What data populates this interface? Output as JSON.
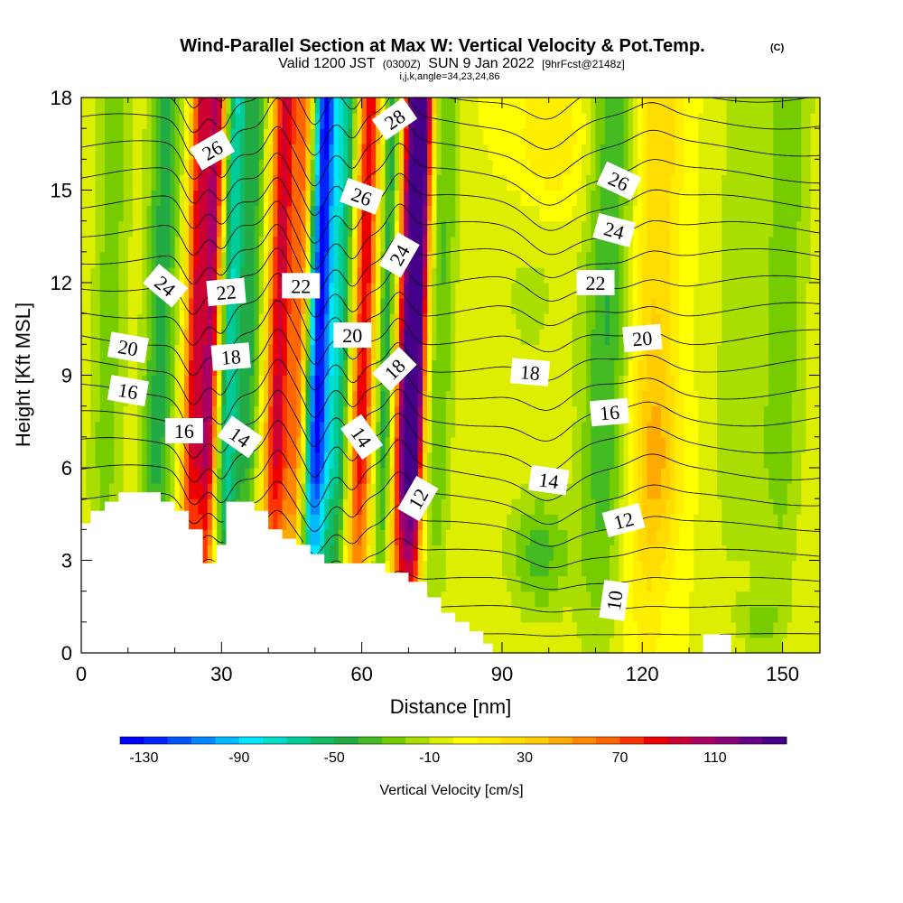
{
  "chart_data": {
    "type": "heatmap",
    "title": "Wind-Parallel Section at Max W: Vertical Velocity & Pot.Temp.",
    "title_mark": "(C)",
    "subtitle_main": "Valid 1200 JST",
    "subtitle_utc": "(0300Z)",
    "subtitle_date": "SUN 9 Jan 2022",
    "subtitle_fcst": "[9hrFcst@2148z]",
    "subtitle_params": "i,j,k,angle=34,23,24,86",
    "xlabel": "Distance [nm]",
    "ylabel": "Height [Kft MSL]",
    "xlim": [
      0,
      158
    ],
    "ylim": [
      0,
      18
    ],
    "x_ticks": [
      "0",
      "30",
      "60",
      "90",
      "120",
      "150"
    ],
    "x_tick_values": [
      0,
      30,
      60,
      90,
      120,
      150
    ],
    "y_ticks": [
      "0",
      "3",
      "6",
      "9",
      "12",
      "15",
      "18"
    ],
    "y_tick_values": [
      0,
      3,
      6,
      9,
      12,
      15,
      18
    ],
    "colorbar": {
      "label": "Vertical Velocity [cm/s]",
      "tick_labels": [
        "-130",
        "-90",
        "-50",
        "-10",
        "30",
        "70",
        "110"
      ],
      "tick_values": [
        -130,
        -90,
        -50,
        -10,
        30,
        70,
        110
      ],
      "min": -140,
      "max": 140,
      "colors": [
        "#0000ff",
        "#0022ff",
        "#0055ff",
        "#0088ff",
        "#00bbff",
        "#00e5ff",
        "#00ddcc",
        "#00cc99",
        "#11bb66",
        "#22aa44",
        "#44bb22",
        "#77cc00",
        "#aadd00",
        "#ddee00",
        "#ffff00",
        "#ffee00",
        "#ffdd00",
        "#ffcc00",
        "#ffaa00",
        "#ff8800",
        "#ff6600",
        "#ff3300",
        "#ee0000",
        "#cc0033",
        "#aa0066",
        "#880077",
        "#660088",
        "#440088"
      ]
    },
    "terrain_kft": [
      [
        0,
        4.2
      ],
      [
        2,
        4.2
      ],
      [
        2,
        4.6
      ],
      [
        5,
        4.6
      ],
      [
        5,
        4.9
      ],
      [
        8,
        4.9
      ],
      [
        8,
        5.2
      ],
      [
        17,
        5.2
      ],
      [
        17,
        4.9
      ],
      [
        20,
        4.9
      ],
      [
        20,
        4.6
      ],
      [
        23,
        4.6
      ],
      [
        23,
        4.0
      ],
      [
        26,
        4.0
      ],
      [
        26,
        2.9
      ],
      [
        29,
        2.9
      ],
      [
        29,
        3.5
      ],
      [
        31,
        3.5
      ],
      [
        31,
        4.9
      ],
      [
        37,
        4.9
      ],
      [
        37,
        4.6
      ],
      [
        40,
        4.6
      ],
      [
        40,
        4.0
      ],
      [
        43,
        4.0
      ],
      [
        43,
        3.7
      ],
      [
        46,
        3.7
      ],
      [
        46,
        3.5
      ],
      [
        49,
        3.5
      ],
      [
        49,
        3.2
      ],
      [
        52,
        3.2
      ],
      [
        52,
        2.9
      ],
      [
        65,
        2.9
      ],
      [
        65,
        2.6
      ],
      [
        70,
        2.6
      ],
      [
        70,
        2.3
      ],
      [
        74,
        2.3
      ],
      [
        74,
        1.8
      ],
      [
        77,
        1.8
      ],
      [
        77,
        1.3
      ],
      [
        80,
        1.3
      ],
      [
        80,
        1.0
      ],
      [
        83,
        1.0
      ],
      [
        83,
        0.7
      ],
      [
        86,
        0.7
      ],
      [
        86,
        0.3
      ],
      [
        88,
        0.3
      ],
      [
        88,
        0.0
      ],
      [
        133,
        0.0
      ],
      [
        133,
        0.6
      ],
      [
        139,
        0.6
      ],
      [
        139,
        0.0
      ],
      [
        158,
        0.0
      ]
    ],
    "w_features": [
      {
        "x": 24.0,
        "width": 2.3,
        "w": 90
      },
      {
        "x": 27.5,
        "width": 2.0,
        "w": 100
      },
      {
        "x": 31.5,
        "width": 2.6,
        "w": -70
      },
      {
        "x": 36.0,
        "width": 2.4,
        "w": -40
      },
      {
        "x": 42.0,
        "width": 2.8,
        "w": 95
      },
      {
        "x": 46.5,
        "width": 2.0,
        "w": 60
      },
      {
        "x": 50.5,
        "width": 2.6,
        "w": -130
      },
      {
        "x": 55.0,
        "width": 2.6,
        "w": -60
      },
      {
        "x": 60.0,
        "width": 2.5,
        "w": 90
      },
      {
        "x": 65.0,
        "width": 2.2,
        "w": -50
      },
      {
        "x": 69.5,
        "width": 2.6,
        "w": 130
      },
      {
        "x": 72.0,
        "width": 1.8,
        "w": 90
      },
      {
        "x": 76.5,
        "width": 3.0,
        "w": -30
      },
      {
        "x": 16.5,
        "width": 3.5,
        "w": -45
      },
      {
        "x": 5.5,
        "width": 4.0,
        "w": -25
      },
      {
        "x": 112.0,
        "width": 5.0,
        "w": -40
      },
      {
        "x": 122.0,
        "width": 5.0,
        "w": 30
      },
      {
        "x": 140.0,
        "width": 6.0,
        "w": -15
      },
      {
        "x": 150.0,
        "width": 5.0,
        "w": -25
      }
    ],
    "w_blobs": [
      {
        "x": 98.0,
        "y": 3.2,
        "sx": 7,
        "sy": 2.0,
        "w": -35
      },
      {
        "x": 96.0,
        "y": 12.0,
        "sx": 10,
        "sy": 5.0,
        "w": -12
      },
      {
        "x": 124.0,
        "y": 6.0,
        "sx": 5,
        "sy": 3.0,
        "w": 20
      },
      {
        "x": 100.0,
        "y": 16.5,
        "sx": 9,
        "sy": 2.5,
        "w": 22
      },
      {
        "x": 145.0,
        "y": 1.0,
        "sx": 4,
        "sy": 0.8,
        "w": -20
      }
    ],
    "isentropes": [
      {
        "theta": 10,
        "label": "10",
        "labels_at": [
          [
            114,
            1.7,
            -82
          ]
        ]
      },
      {
        "theta": 12,
        "label": "12",
        "labels_at": [
          [
            72,
            5.0,
            -60
          ],
          [
            116,
            4.3,
            -15
          ]
        ]
      },
      {
        "theta": 14,
        "label": "14",
        "labels_at": [
          [
            34,
            7.0,
            35
          ],
          [
            60,
            7.0,
            55
          ],
          [
            100,
            5.6,
            8
          ]
        ]
      },
      {
        "theta": 16,
        "label": "16",
        "labels_at": [
          [
            10,
            8.5,
            10
          ],
          [
            22,
            7.2,
            0
          ],
          [
            113,
            7.8,
            -5
          ]
        ]
      },
      {
        "theta": 18,
        "label": "18",
        "labels_at": [
          [
            32,
            9.6,
            -5
          ],
          [
            67,
            9.2,
            -45
          ],
          [
            96,
            9.1,
            5
          ]
        ]
      },
      {
        "theta": 20,
        "label": "20",
        "labels_at": [
          [
            10,
            9.9,
            10
          ],
          [
            58,
            10.3,
            0
          ],
          [
            120,
            10.2,
            -5
          ]
        ]
      },
      {
        "theta": 22,
        "label": "22",
        "labels_at": [
          [
            31,
            11.7,
            -5
          ],
          [
            47,
            11.9,
            0
          ],
          [
            110,
            12.0,
            0
          ]
        ]
      },
      {
        "theta": 24,
        "label": "24",
        "labels_at": [
          [
            18,
            11.9,
            40
          ],
          [
            68,
            12.9,
            -60
          ],
          [
            114,
            13.7,
            15
          ]
        ]
      },
      {
        "theta": 26,
        "label": "26",
        "labels_at": [
          [
            28,
            16.3,
            -30
          ],
          [
            60,
            14.8,
            20
          ],
          [
            115,
            15.3,
            25
          ]
        ]
      },
      {
        "theta": 28,
        "label": "28",
        "labels_at": [
          [
            67,
            17.3,
            -35
          ]
        ]
      }
    ]
  }
}
